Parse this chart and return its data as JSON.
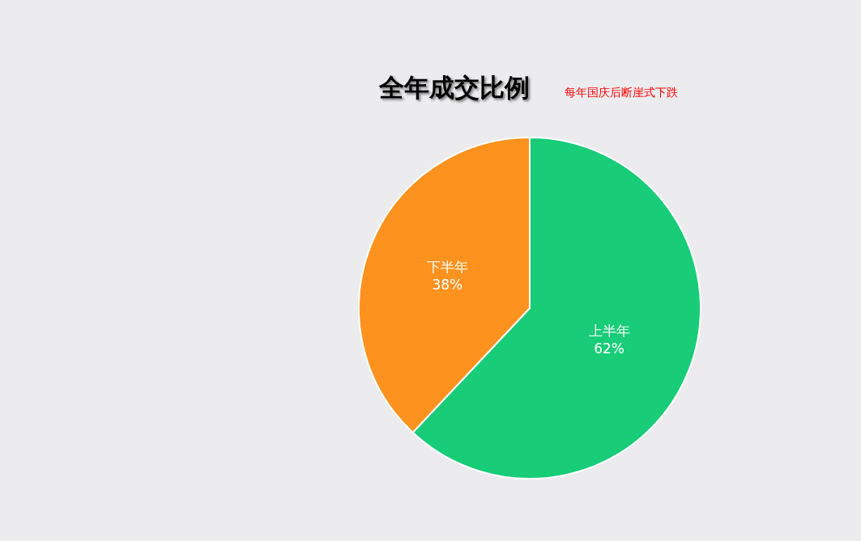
{
  "chart_data": {
    "type": "pie",
    "title": "全年成交比例",
    "subtitle": "每年国庆后断崖式下跌",
    "categories": [
      "上半年",
      "下半年"
    ],
    "values": [
      62,
      38
    ],
    "value_labels": [
      "62%",
      "38%"
    ],
    "colors": [
      "#18cc78",
      "#fe921e"
    ]
  }
}
